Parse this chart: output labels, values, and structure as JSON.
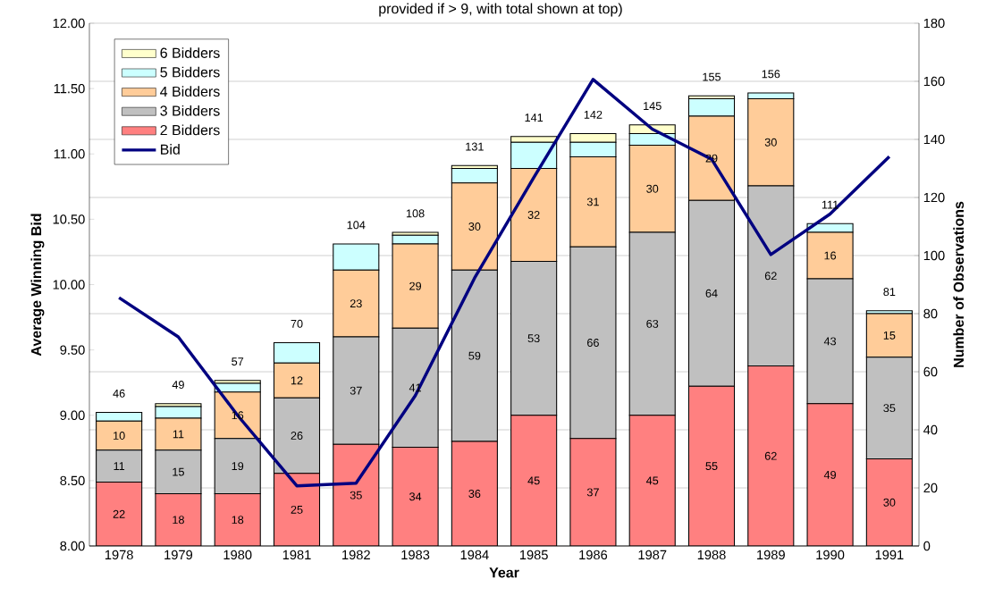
{
  "chart_data": {
    "type": "bar",
    "title": "provided if > 9, with total shown at top)",
    "xlabel": "Year",
    "ylabel": "Average Winning Bid",
    "y2label": "Number of Observations",
    "categories": [
      "1978",
      "1979",
      "1980",
      "1981",
      "1982",
      "1983",
      "1984",
      "1985",
      "1986",
      "1987",
      "1988",
      "1989",
      "1990",
      "1991"
    ],
    "stacked": true,
    "grid": "y",
    "legend": "top left",
    "marker": "none",
    "line_style": "solid",
    "ylim": [
      8,
      12
    ],
    "yticks": [
      {
        "value": 8,
        "label": "8.00"
      },
      {
        "value": 8.5,
        "label": "8.50"
      },
      {
        "value": 9,
        "label": "9.00"
      },
      {
        "value": 9.5,
        "label": "9.50"
      },
      {
        "value": 10,
        "label": "10.00"
      },
      {
        "value": 10.5,
        "label": "10.50"
      },
      {
        "value": 11,
        "label": "11.00"
      },
      {
        "value": 11.5,
        "label": "11.50"
      },
      {
        "value": 12,
        "label": "12.00"
      }
    ],
    "y2lim": [
      0,
      180
    ],
    "y2ticks": [
      0,
      20,
      40,
      60,
      80,
      100,
      120,
      140,
      160,
      180
    ],
    "series": [
      {
        "name": "2 Bidders",
        "axis": "y2",
        "color": "#ff8080",
        "values": [
          22,
          18,
          18,
          25,
          35,
          34,
          36,
          45,
          37,
          45,
          55,
          62,
          49,
          30
        ],
        "value_labels": [
          "22",
          "18",
          "18",
          "25",
          "35",
          "34",
          "36",
          "45",
          "37",
          "45",
          "55",
          "62",
          "49",
          "30"
        ]
      },
      {
        "name": "3 Bidders",
        "axis": "y2",
        "color": "#c0c0c0",
        "values": [
          11,
          15,
          19,
          26,
          37,
          41,
          59,
          53,
          66,
          63,
          64,
          62,
          43,
          35
        ],
        "value_labels": [
          "11",
          "15",
          "19",
          "26",
          "37",
          "41",
          "59",
          "53",
          "66",
          "63",
          "64",
          "62",
          "43",
          "35"
        ]
      },
      {
        "name": "4 Bidders",
        "axis": "y2",
        "color": "#ffcc99",
        "values": [
          10,
          11,
          16,
          12,
          23,
          29,
          30,
          32,
          31,
          30,
          29,
          30,
          16,
          15
        ],
        "value_labels": [
          "10",
          "11",
          "16",
          "12",
          "23",
          "29",
          "30",
          "32",
          "31",
          "30",
          "29",
          "30",
          "16",
          "15"
        ]
      },
      {
        "name": "5 Bidders",
        "axis": "y2",
        "color": "#ccffff",
        "values": [
          3,
          4,
          3,
          7,
          9,
          3,
          5,
          9,
          5,
          4,
          6,
          2,
          3,
          1
        ]
      },
      {
        "name": "6 Bidders",
        "axis": "y2",
        "color": "#ffffcc",
        "values": [
          0,
          1,
          1,
          0,
          0,
          1,
          1,
          2,
          3,
          3,
          1,
          0,
          0,
          0
        ]
      },
      {
        "name": "Bid",
        "type": "line",
        "axis": "y",
        "color": "#000080",
        "values": [
          9.9,
          9.6,
          9.0,
          8.46,
          8.48,
          9.15,
          10.05,
          10.82,
          11.57,
          11.19,
          10.96,
          10.23,
          10.54,
          10.98
        ]
      }
    ],
    "totals": [
      "46",
      "49",
      "57",
      "70",
      "104",
      "108",
      "131",
      "141",
      "142",
      "145",
      "155",
      "156",
      "111",
      "81"
    ]
  }
}
